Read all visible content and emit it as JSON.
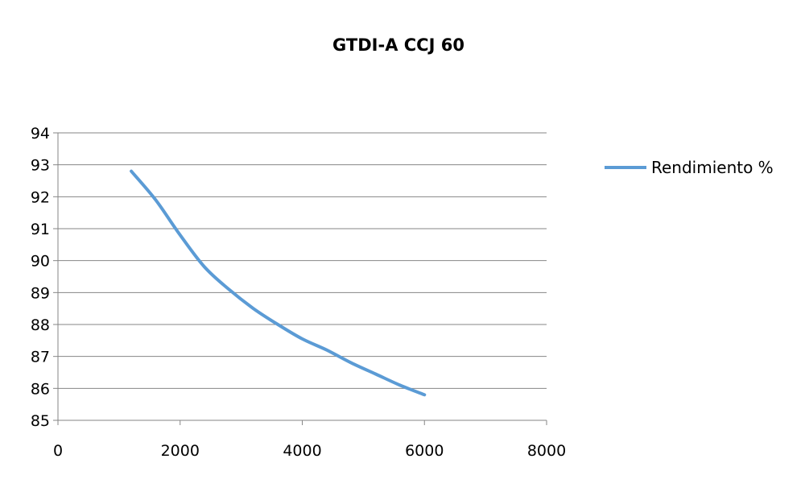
{
  "chart_data": {
    "type": "line",
    "title": "GTDI-A CCJ 60",
    "xlabel": "",
    "ylabel": "",
    "xlim": [
      0,
      8000
    ],
    "ylim": [
      85,
      94
    ],
    "x_ticks": [
      0,
      2000,
      4000,
      6000,
      8000
    ],
    "y_ticks": [
      85,
      86,
      87,
      88,
      89,
      90,
      91,
      92,
      93,
      94
    ],
    "grid": "horizontal",
    "legend_position": "right",
    "series": [
      {
        "name": "Rendimiento %",
        "color": "#5B9BD5",
        "x": [
          1200,
          1600,
          2000,
          2400,
          2800,
          3200,
          3600,
          4000,
          4400,
          4800,
          5200,
          5600,
          6000
        ],
        "y": [
          92.8,
          91.9,
          90.8,
          89.8,
          89.1,
          88.5,
          88.0,
          87.55,
          87.2,
          86.8,
          86.45,
          86.1,
          85.8
        ]
      }
    ]
  }
}
